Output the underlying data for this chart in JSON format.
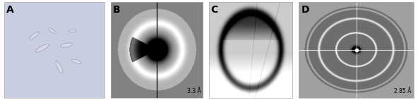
{
  "panel_labels": [
    "A",
    "B",
    "C",
    "D"
  ],
  "label_annotations": {
    "B_text": "3.3 Å",
    "D_text": "2.85 Å"
  },
  "panel_A_bg": "#c8cde0",
  "figure_bg": "#ffffff"
}
